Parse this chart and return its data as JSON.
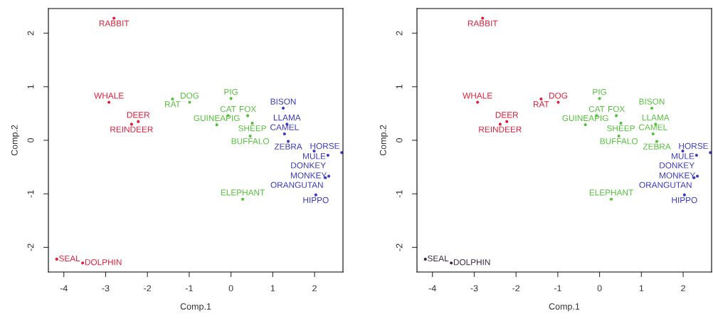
{
  "chart_data": [
    {
      "type": "scatter",
      "xlabel": "Comp.1",
      "ylabel": "Comp.2",
      "marker": "circle",
      "grid": false,
      "legend": false,
      "xlim": [
        -4.37,
        2.68
      ],
      "ylim": [
        -2.46,
        2.46
      ],
      "xticks": [
        -4,
        -3,
        -2,
        -1,
        0,
        1,
        2
      ],
      "yticks": [
        -2,
        -1,
        0,
        1,
        2
      ],
      "series": [
        {
          "color": "#e0203c",
          "x": [
            -2.8,
            -2.92,
            -2.22,
            -2.38,
            -4.17,
            -3.55
          ],
          "values": [
            2.28,
            0.71,
            0.35,
            0.3,
            -2.22,
            -2.29
          ],
          "value_labels": [
            "RABBIT",
            "WHALE",
            "DEER",
            "REINDEER",
            "SEAL",
            "DOLPHIN"
          ]
        },
        {
          "color": "#55c23c",
          "x": [
            -1.4,
            -0.99,
            0.0,
            -0.07,
            0.4,
            -0.34,
            0.51,
            0.46,
            0.28
          ],
          "values": [
            0.77,
            0.71,
            0.78,
            0.46,
            0.46,
            0.29,
            0.32,
            0.08,
            -1.1
          ],
          "value_labels": [
            "RAT",
            "DOG",
            "PIG",
            "CAT",
            "FOX",
            "GUINEAPIG",
            "SHEEP",
            "BUFFALO",
            "ELEPHANT"
          ]
        },
        {
          "color": "#3c3cbe",
          "x": [
            1.25,
            1.34,
            1.28,
            1.37,
            1.99,
            2.65,
            2.32,
            2.26,
            2.34,
            2.03
          ],
          "values": [
            0.6,
            0.3,
            0.12,
            -0.02,
            -0.2,
            -0.23,
            -0.28,
            -0.7,
            -0.67,
            -1.02
          ],
          "value_labels": [
            "BISON",
            "LLAMA",
            "CAMEL",
            "ZEBRA",
            "MULE",
            "HORSE",
            "DONKEY",
            "ORANGUTAN",
            "MONKEY",
            "HIPPO"
          ]
        }
      ]
    },
    {
      "type": "scatter",
      "xlabel": "Comp.1",
      "ylabel": "Comp.2",
      "marker": "circle",
      "grid": false,
      "legend": false,
      "xlim": [
        -4.37,
        2.68
      ],
      "ylim": [
        -2.46,
        2.46
      ],
      "xticks": [
        -4,
        -3,
        -2,
        -1,
        0,
        1,
        2
      ],
      "yticks": [
        -2,
        -1,
        0,
        1,
        2
      ],
      "series": [
        {
          "color": "#e0203c",
          "x": [
            -2.8,
            -2.92,
            -2.22,
            -2.38,
            -1.4,
            -0.99
          ],
          "values": [
            2.28,
            0.71,
            0.35,
            0.3,
            0.77,
            0.71
          ],
          "value_labels": [
            "RABBIT",
            "WHALE",
            "DEER",
            "REINDEER",
            "RAT",
            "DOG"
          ]
        },
        {
          "color": "#55c23c",
          "x": [
            0.0,
            -0.07,
            0.4,
            -0.34,
            0.51,
            0.46,
            0.28,
            1.25,
            1.34,
            1.28,
            1.37
          ],
          "values": [
            0.78,
            0.46,
            0.46,
            0.29,
            0.32,
            0.08,
            -1.1,
            0.6,
            0.3,
            0.12,
            -0.02
          ],
          "value_labels": [
            "PIG",
            "CAT",
            "FOX",
            "GUINEAPIG",
            "SHEEP",
            "BUFFALO",
            "ELEPHANT",
            "BISON",
            "LLAMA",
            "CAMEL",
            "ZEBRA"
          ]
        },
        {
          "color": "#3c3cbe",
          "x": [
            1.99,
            2.65,
            2.32,
            2.26,
            2.34,
            2.03
          ],
          "values": [
            -0.2,
            -0.23,
            -0.28,
            -0.7,
            -0.67,
            -1.02
          ],
          "value_labels": [
            "MULE",
            "HORSE",
            "DONKEY",
            "ORANGUTAN",
            "MONKEY",
            "HIPPO"
          ]
        },
        {
          "color": "#3a2840",
          "x": [
            -4.17,
            -3.55
          ],
          "values": [
            -2.22,
            -2.29
          ],
          "value_labels": [
            "SEAL",
            "DOLPHIN"
          ]
        }
      ]
    }
  ]
}
